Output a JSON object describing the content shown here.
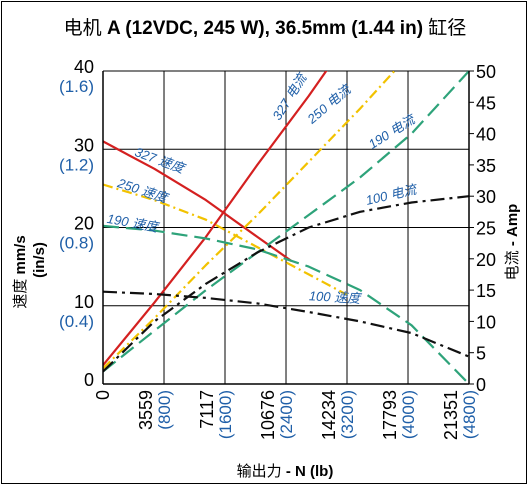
{
  "chart_data": {
    "type": "line",
    "title": {
      "prefix": "电机 ",
      "bold": "A (12VDC, 245 W), 36.5mm (1.44 in)",
      "suffix": " 缸径"
    },
    "x_axis": {
      "label_plain": "输出力 ",
      "label_bold": "- N (lb)",
      "range": [
        0,
        21351
      ],
      "ticks": [
        {
          "value": 0,
          "label": "0",
          "sub": ""
        },
        {
          "value": 3559,
          "label": "3559",
          "sub": "(800)"
        },
        {
          "value": 7117,
          "label": "7117",
          "sub": "(1600)"
        },
        {
          "value": 10676,
          "label": "10676",
          "sub": "(2400)"
        },
        {
          "value": 14234,
          "label": "14234",
          "sub": "(3200)"
        },
        {
          "value": 17793,
          "label": "17793",
          "sub": "(4000)"
        },
        {
          "value": 21351,
          "label": "21351",
          "sub": "(4800)"
        }
      ]
    },
    "y_left": {
      "label_plain": "速度 ",
      "label_bold": "mm/s",
      "label_sub": "(in/s)",
      "range": [
        0,
        40
      ],
      "ticks": [
        {
          "value": 0,
          "label": "0",
          "sub": ""
        },
        {
          "value": 10,
          "label": "10",
          "sub": "(0.4)"
        },
        {
          "value": 20,
          "label": "20",
          "sub": "(0.8)"
        },
        {
          "value": 30,
          "label": "30",
          "sub": "(1.2)"
        },
        {
          "value": 40,
          "label": "40",
          "sub": "(1.6)"
        }
      ]
    },
    "y_right": {
      "label_plain": "电流 ",
      "label_bold": "- Amp",
      "range": [
        0,
        50
      ],
      "ticks": [
        "0",
        "5",
        "10",
        "15",
        "20",
        "25",
        "30",
        "35",
        "40",
        "45",
        "50"
      ]
    },
    "series": [
      {
        "name": "327 速度",
        "axis": "left",
        "color": "#d42020",
        "dash": "",
        "width": 2.2,
        "x": [
          0,
          3000,
          6000,
          9000,
          11000
        ],
        "y": [
          31,
          27.5,
          23.5,
          18.8,
          15.7
        ],
        "label_at": [
          1800,
          29.2
        ],
        "label_rot": 20
      },
      {
        "name": "327 电流",
        "axis": "right",
        "color": "#d42020",
        "dash": "",
        "width": 2.2,
        "x": [
          0,
          3000,
          6000,
          9000,
          12000,
          14300
        ],
        "y": [
          3,
          13,
          23.5,
          35,
          46,
          55
        ],
        "label_at": [
          10300,
          42
        ],
        "label_rot": -58
      },
      {
        "name": "250 速度",
        "axis": "left",
        "color": "#f2c200",
        "dash": "10,4,2,4",
        "width": 2.2,
        "x": [
          0,
          3000,
          6000,
          9000,
          12000,
          14234
        ],
        "y": [
          25.5,
          23.5,
          21,
          17.5,
          14,
          11.4
        ],
        "label_at": [
          800,
          25.2
        ],
        "label_rot": 18
      },
      {
        "name": "250 电流",
        "axis": "right",
        "color": "#f2c200",
        "dash": "10,4,2,4",
        "width": 2.2,
        "x": [
          0,
          3000,
          6000,
          9000,
          12000,
          15000,
          17000
        ],
        "y": [
          2.5,
          10.5,
          19,
          27,
          35.5,
          44,
          50
        ],
        "label_at": [
          12200,
          41.5
        ],
        "label_rot": -40
      },
      {
        "name": "190 速度",
        "axis": "left",
        "color": "#2ea37a",
        "dash": "16,7",
        "width": 2.2,
        "x": [
          0,
          3000,
          6000,
          9000,
          12000,
          15000,
          18000,
          21351
        ],
        "y": [
          20.2,
          19.6,
          18.6,
          17.2,
          15,
          12,
          7.5,
          0
        ],
        "label_at": [
          200,
          20.6
        ],
        "label_rot": 10
      },
      {
        "name": "190 电流",
        "axis": "right",
        "color": "#2ea37a",
        "dash": "16,7",
        "width": 2.2,
        "x": [
          0,
          3000,
          6000,
          9000,
          12000,
          15000,
          18000,
          21351
        ],
        "y": [
          2,
          8.5,
          15,
          21,
          27,
          33,
          40,
          50
        ],
        "label_at": [
          15700,
          37.5
        ],
        "label_rot": -32
      },
      {
        "name": "100 速度",
        "axis": "left",
        "color": "#111111",
        "dash": "14,5,3,5",
        "width": 2.2,
        "x": [
          0,
          3000,
          6000,
          9000,
          12000,
          15000,
          18000,
          21351
        ],
        "y": [
          11.8,
          11.5,
          11,
          10.3,
          9.2,
          8,
          6.5,
          3.5
        ],
        "label_at": [
          12000,
          10.7
        ],
        "label_rot": 3
      },
      {
        "name": "100 电流",
        "axis": "right",
        "color": "#111111",
        "dash": "14,5,3,5",
        "width": 2.2,
        "x": [
          0,
          3000,
          6000,
          9000,
          12000,
          15000,
          18000,
          21351
        ],
        "y": [
          2,
          10,
          16,
          21,
          25,
          27.5,
          29,
          30
        ],
        "label_at": [
          15400,
          28.6
        ],
        "label_rot": -13
      }
    ],
    "grid": true
  }
}
